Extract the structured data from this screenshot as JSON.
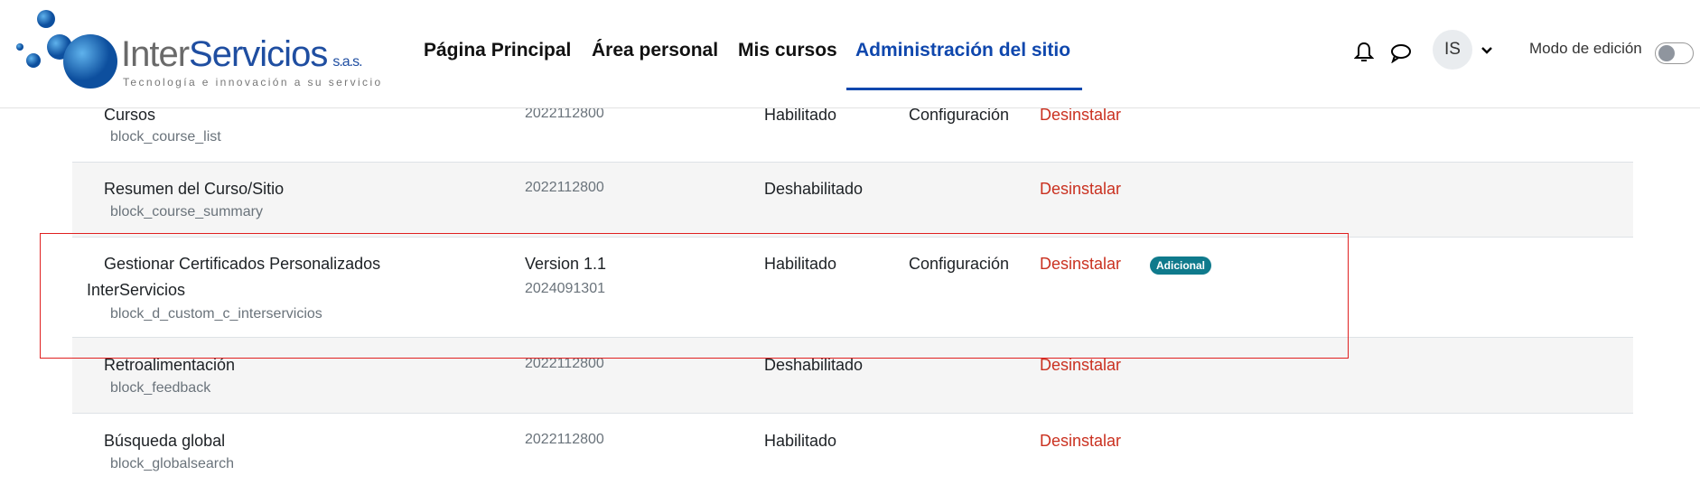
{
  "logo": {
    "name_a": "Inter",
    "name_b": "Servicios",
    "sas": "s.a.s.",
    "tagline": "Tecnología e innovación a su servicio"
  },
  "nav": [
    "Página Principal",
    "Área personal",
    "Mis cursos",
    "Administración del sitio"
  ],
  "user": {
    "initials": "IS"
  },
  "edit_mode": {
    "label": "Modo de edición",
    "on": false
  },
  "rows": [
    {
      "name": "Cursos",
      "component": "block_course_list",
      "version": "2022112800",
      "status": "Habilitado",
      "settings": "Configuración",
      "uninstall": "Desinstalar"
    },
    {
      "name": "Resumen del Curso/Sitio",
      "component": "block_course_summary",
      "version": "2022112800",
      "status": "Deshabilitado",
      "uninstall": "Desinstalar"
    },
    {
      "name_line1": "Gestionar Certificados Personalizados",
      "name_line2": "InterServicios",
      "component": "block_d_custom_c_interservicios",
      "release": "Version 1.1",
      "version": "2024091301",
      "status": "Habilitado",
      "settings": "Configuración",
      "uninstall": "Desinstalar",
      "badge": "Adicional"
    },
    {
      "name": "Retroalimentación",
      "component": "block_feedback",
      "version": "2022112800",
      "status": "Deshabilitado",
      "uninstall": "Desinstalar"
    },
    {
      "name": "Búsqueda global",
      "component": "block_globalsearch",
      "version": "2022112800",
      "status": "Habilitado",
      "uninstall": "Desinstalar"
    }
  ],
  "colors": {
    "accent": "#0f47ad",
    "uninstall": "#ca3120",
    "badge": "#0f7a8c",
    "highlight": "#e02020"
  }
}
